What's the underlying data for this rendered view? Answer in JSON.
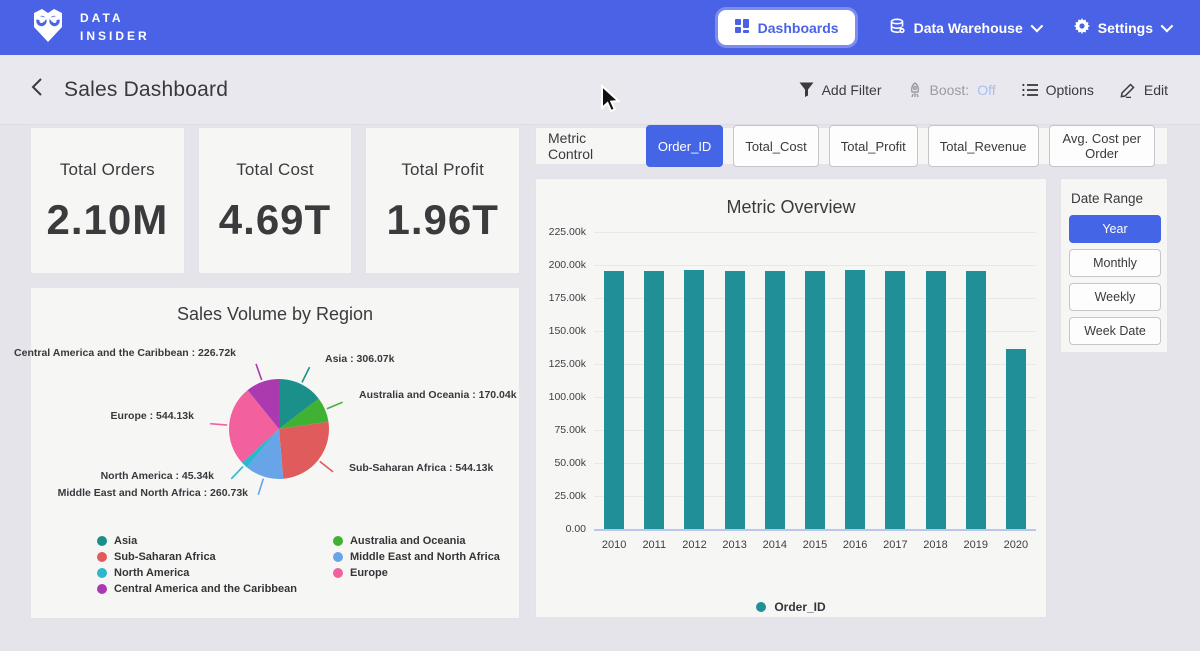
{
  "nav": {
    "logo_line1": "DATA",
    "logo_line2": "INSIDER",
    "dashboards_label": "Dashboards",
    "data_warehouse_label": "Data Warehouse",
    "settings_label": "Settings"
  },
  "header": {
    "title": "Sales Dashboard",
    "add_filter_label": "Add Filter",
    "boost_label": "Boost:",
    "boost_value": "Off",
    "options_label": "Options",
    "edit_label": "Edit"
  },
  "kpis": [
    {
      "label": "Total Orders",
      "value": "2.10M"
    },
    {
      "label": "Total Cost",
      "value": "4.69T"
    },
    {
      "label": "Total Profit",
      "value": "1.96T"
    }
  ],
  "metric_control": {
    "label": "Metric Control",
    "options": [
      {
        "label": "Order_ID",
        "selected": true
      },
      {
        "label": "Total_Cost",
        "selected": false
      },
      {
        "label": "Total_Profit",
        "selected": false
      },
      {
        "label": "Total_Revenue",
        "selected": false
      },
      {
        "label": "Avg. Cost per Order",
        "selected": false
      }
    ]
  },
  "date_range": {
    "label": "Date Range",
    "options": [
      {
        "label": "Year",
        "selected": true
      },
      {
        "label": "Monthly",
        "selected": false
      },
      {
        "label": "Weekly",
        "selected": false
      },
      {
        "label": "Week Date",
        "selected": false
      }
    ]
  },
  "colors": {
    "nav_blue": "#4a62e6",
    "selected_blue": "#4365e6",
    "bar_teal": "#209096",
    "boost_off_blue": "#a9bcf5"
  },
  "chart_data": [
    {
      "type": "pie",
      "title": "Sales Volume by Region",
      "unit": "k",
      "slices": [
        {
          "label": "Asia",
          "value": 306.07,
          "display": "Asia : 306.07k",
          "color": "#1b8f8a"
        },
        {
          "label": "Australia and Oceania",
          "value": 170.04,
          "display": "Australia and Oceania : 170.04k",
          "color": "#3fb234"
        },
        {
          "label": "Sub-Saharan Africa",
          "value": 544.13,
          "display": "Sub-Saharan Africa : 544.13k",
          "color": "#e05b5b"
        },
        {
          "label": "Middle East and North Africa",
          "value": 260.73,
          "display": "Middle East and North Africa : 260.73k",
          "color": "#68a4e8"
        },
        {
          "label": "North America",
          "value": 45.34,
          "display": "North America : 45.34k",
          "color": "#2bb7cd"
        },
        {
          "label": "Europe",
          "value": 544.13,
          "display": "Europe : 544.13k",
          "color": "#f2609e"
        },
        {
          "label": "Central America and the Caribbean",
          "value": 226.72,
          "display": "Central America and the Caribbean : 226.72k",
          "color": "#ab3ab0"
        }
      ],
      "legend_columns": [
        [
          0,
          2,
          4,
          6
        ],
        [
          1,
          3,
          5
        ]
      ],
      "legend_position": "bottom"
    },
    {
      "type": "bar",
      "title": "Metric Overview",
      "categories": [
        "2010",
        "2011",
        "2012",
        "2013",
        "2014",
        "2015",
        "2016",
        "2017",
        "2018",
        "2019",
        "2020"
      ],
      "values": [
        195.6,
        195.5,
        196.4,
        195.5,
        195.4,
        195.5,
        196.5,
        195.6,
        195.5,
        195.5,
        136.2
      ],
      "unit": "k",
      "y_ticks": [
        "225.00k",
        "200.00k",
        "175.00k",
        "150.00k",
        "125.00k",
        "100.00k",
        "75.00k",
        "50.00k",
        "25.00k",
        "0.00"
      ],
      "ylim": [
        0,
        225
      ],
      "grid": true,
      "legend": "Order_ID",
      "legend_position": "bottom",
      "bar_color": "#209096"
    }
  ]
}
